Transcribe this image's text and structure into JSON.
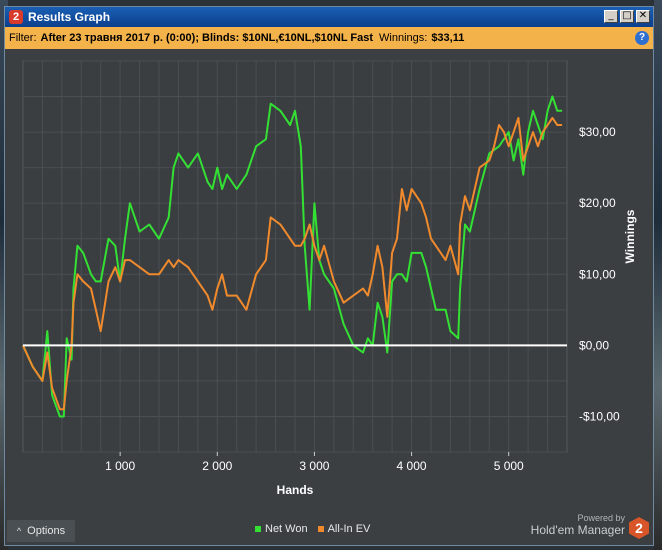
{
  "window": {
    "title": "Results Graph",
    "app_icon_text": "2",
    "buttons": {
      "minimize": "_",
      "maximize": "□",
      "close": "✕"
    }
  },
  "filter": {
    "label": "Filter:",
    "value": "After 23 травня 2017 р. (0:00); Blinds: $10NL,€10NL,$10NL Fast",
    "winnings_label": "Winnings:",
    "winnings_value": "$33,11",
    "help_icon_text": "?"
  },
  "chart_data": {
    "type": "line",
    "xlabel": "Hands",
    "ylabel": "Winnings",
    "xlim": [
      0,
      5600
    ],
    "ylim": [
      -15,
      40
    ],
    "x_ticks": [
      1000,
      2000,
      3000,
      4000,
      5000
    ],
    "x_tick_labels": [
      "1 000",
      "2 000",
      "3 000",
      "4 000",
      "5 000"
    ],
    "y_ticks": [
      -10,
      0,
      10,
      20,
      30
    ],
    "y_tick_labels": [
      "-$10,00",
      "$0,00",
      "$10,00",
      "$20,00",
      "$30,00"
    ],
    "zero_line": true,
    "grid": true,
    "series": [
      {
        "name": "Net Won",
        "color": "#33e033",
        "points": [
          [
            0,
            0
          ],
          [
            100,
            -3
          ],
          [
            200,
            -5
          ],
          [
            250,
            2
          ],
          [
            300,
            -7
          ],
          [
            380,
            -10
          ],
          [
            420,
            -10
          ],
          [
            450,
            1
          ],
          [
            500,
            -2
          ],
          [
            520,
            8
          ],
          [
            560,
            14
          ],
          [
            620,
            13
          ],
          [
            700,
            10
          ],
          [
            750,
            9
          ],
          [
            800,
            9
          ],
          [
            880,
            15
          ],
          [
            950,
            14
          ],
          [
            1000,
            9
          ],
          [
            1050,
            15
          ],
          [
            1100,
            20
          ],
          [
            1200,
            16
          ],
          [
            1300,
            17
          ],
          [
            1400,
            15
          ],
          [
            1500,
            18
          ],
          [
            1550,
            25
          ],
          [
            1600,
            27
          ],
          [
            1700,
            25
          ],
          [
            1800,
            27
          ],
          [
            1900,
            23
          ],
          [
            1950,
            22
          ],
          [
            2000,
            25
          ],
          [
            2050,
            22
          ],
          [
            2100,
            24
          ],
          [
            2200,
            22
          ],
          [
            2300,
            24
          ],
          [
            2400,
            28
          ],
          [
            2500,
            29
          ],
          [
            2550,
            34
          ],
          [
            2650,
            33
          ],
          [
            2750,
            31
          ],
          [
            2800,
            33
          ],
          [
            2860,
            28
          ],
          [
            2900,
            14
          ],
          [
            2950,
            5
          ],
          [
            3000,
            20
          ],
          [
            3050,
            12
          ],
          [
            3100,
            10
          ],
          [
            3200,
            8
          ],
          [
            3300,
            3
          ],
          [
            3400,
            0
          ],
          [
            3500,
            -1
          ],
          [
            3550,
            1
          ],
          [
            3600,
            0
          ],
          [
            3650,
            6
          ],
          [
            3700,
            4
          ],
          [
            3750,
            -1
          ],
          [
            3800,
            9
          ],
          [
            3850,
            10
          ],
          [
            3900,
            10
          ],
          [
            3950,
            9
          ],
          [
            4000,
            13
          ],
          [
            4100,
            13
          ],
          [
            4150,
            11
          ],
          [
            4200,
            8
          ],
          [
            4250,
            5
          ],
          [
            4350,
            5
          ],
          [
            4400,
            2
          ],
          [
            4480,
            1
          ],
          [
            4500,
            8
          ],
          [
            4550,
            17
          ],
          [
            4600,
            16
          ],
          [
            4700,
            22
          ],
          [
            4800,
            27
          ],
          [
            4900,
            28
          ],
          [
            5000,
            30
          ],
          [
            5050,
            26
          ],
          [
            5100,
            29
          ],
          [
            5150,
            24
          ],
          [
            5200,
            30
          ],
          [
            5250,
            33
          ],
          [
            5300,
            31
          ],
          [
            5350,
            29
          ],
          [
            5400,
            33
          ],
          [
            5450,
            35
          ],
          [
            5500,
            33
          ],
          [
            5550,
            33
          ]
        ]
      },
      {
        "name": "All-In EV",
        "color": "#f08a2c",
        "points": [
          [
            0,
            0
          ],
          [
            100,
            -3
          ],
          [
            200,
            -5
          ],
          [
            250,
            -1
          ],
          [
            300,
            -6
          ],
          [
            380,
            -9
          ],
          [
            420,
            -9
          ],
          [
            450,
            -5
          ],
          [
            500,
            0
          ],
          [
            520,
            6
          ],
          [
            560,
            10
          ],
          [
            620,
            9
          ],
          [
            700,
            8
          ],
          [
            750,
            5
          ],
          [
            800,
            2
          ],
          [
            880,
            9
          ],
          [
            950,
            11
          ],
          [
            1000,
            9
          ],
          [
            1050,
            12
          ],
          [
            1100,
            12
          ],
          [
            1200,
            11
          ],
          [
            1300,
            10
          ],
          [
            1400,
            10
          ],
          [
            1500,
            12
          ],
          [
            1550,
            11
          ],
          [
            1600,
            12
          ],
          [
            1700,
            11
          ],
          [
            1800,
            9
          ],
          [
            1900,
            7
          ],
          [
            1950,
            5
          ],
          [
            2000,
            8
          ],
          [
            2050,
            10
          ],
          [
            2100,
            7
          ],
          [
            2200,
            7
          ],
          [
            2300,
            5
          ],
          [
            2400,
            10
          ],
          [
            2500,
            12
          ],
          [
            2550,
            18
          ],
          [
            2650,
            17
          ],
          [
            2700,
            16
          ],
          [
            2800,
            14
          ],
          [
            2860,
            14
          ],
          [
            2900,
            15
          ],
          [
            2950,
            17
          ],
          [
            3000,
            14
          ],
          [
            3050,
            12
          ],
          [
            3100,
            14
          ],
          [
            3200,
            9
          ],
          [
            3300,
            6
          ],
          [
            3400,
            7
          ],
          [
            3500,
            8
          ],
          [
            3550,
            7
          ],
          [
            3600,
            10
          ],
          [
            3650,
            14
          ],
          [
            3700,
            11
          ],
          [
            3750,
            4
          ],
          [
            3800,
            13
          ],
          [
            3850,
            15
          ],
          [
            3900,
            22
          ],
          [
            3950,
            19
          ],
          [
            4000,
            22
          ],
          [
            4100,
            20
          ],
          [
            4150,
            18
          ],
          [
            4200,
            15
          ],
          [
            4250,
            14
          ],
          [
            4350,
            12
          ],
          [
            4400,
            14
          ],
          [
            4480,
            10
          ],
          [
            4500,
            17
          ],
          [
            4550,
            21
          ],
          [
            4600,
            19
          ],
          [
            4700,
            25
          ],
          [
            4800,
            26
          ],
          [
            4850,
            28
          ],
          [
            4900,
            31
          ],
          [
            4950,
            30
          ],
          [
            5000,
            28
          ],
          [
            5050,
            30
          ],
          [
            5100,
            32
          ],
          [
            5150,
            26
          ],
          [
            5200,
            28
          ],
          [
            5250,
            30
          ],
          [
            5300,
            28
          ],
          [
            5350,
            30
          ],
          [
            5400,
            31
          ],
          [
            5450,
            32
          ],
          [
            5500,
            31
          ],
          [
            5550,
            31
          ]
        ]
      }
    ]
  },
  "bottom": {
    "options_label": "Options",
    "legend": [
      {
        "label": "Net Won",
        "color": "#33e033"
      },
      {
        "label": "All-In EV",
        "color": "#f08a2c"
      }
    ],
    "powered_by": "Powered by",
    "brand_name": "Hold'em Manager",
    "brand_logo_text": "2"
  }
}
